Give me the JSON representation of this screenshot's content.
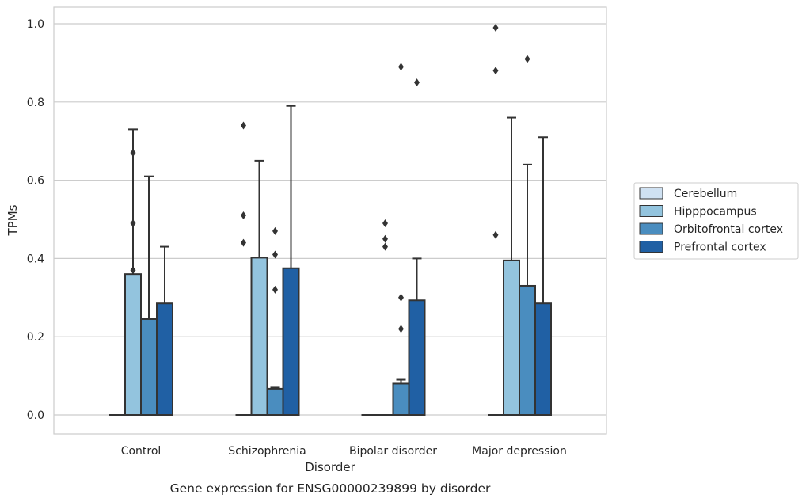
{
  "chart_data": {
    "type": "bar",
    "caption": "Gene expression for ENSG00000239899 by disorder",
    "xlabel": "Disorder",
    "ylabel": "TPMs",
    "ylim": [
      -0.05,
      1.04
    ],
    "yticks": [
      0.0,
      0.2,
      0.4,
      0.6,
      0.8,
      1.0
    ],
    "ytick_labels": [
      "0.0",
      "0.2",
      "0.4",
      "0.6",
      "0.8",
      "1.0"
    ],
    "grid": "horizontal",
    "legend_placement": "right",
    "categories": [
      "Control",
      "Schizophrenia",
      "Bipolar disorder",
      "Major depression"
    ],
    "series": [
      {
        "name": "Cerebellum",
        "color": "#cfe1f2",
        "values": [
          0.0,
          0.0,
          0.0,
          0.0
        ],
        "error_upper": [
          null,
          null,
          null,
          null
        ],
        "outliers": [
          [],
          [
            0.74,
            0.51,
            0.44
          ],
          [],
          [
            0.99,
            0.88,
            0.46
          ]
        ]
      },
      {
        "name": "Hipppocampus",
        "color": "#93c4de",
        "values": [
          0.36,
          0.402,
          0.0,
          0.395
        ],
        "error_upper": [
          0.73,
          0.65,
          null,
          0.76
        ],
        "outliers": [
          [
            0.67,
            0.49,
            0.37
          ],
          [],
          [],
          []
        ]
      },
      {
        "name": "Orbitofrontal cortex",
        "color": "#4a8dbf",
        "values": [
          0.245,
          0.067,
          0.08,
          0.33
        ],
        "error_upper": [
          0.61,
          0.07,
          0.09,
          0.64
        ],
        "outliers": [
          [],
          [
            0.47,
            0.41,
            0.32
          ],
          [
            0.89
          ],
          [
            0.91
          ]
        ]
      },
      {
        "name": "Prefrontal cortex",
        "color": "#2060a4",
        "values": [
          0.285,
          0.375,
          0.293,
          0.285
        ],
        "error_upper": [
          0.43,
          0.79,
          0.4,
          0.71
        ],
        "outliers": [
          [],
          [],
          [
            0.85
          ],
          []
        ]
      }
    ],
    "extra_outliers": [
      {
        "category": 2,
        "x_offset_series": 1,
        "values": [
          0.49,
          0.45,
          0.43
        ]
      },
      {
        "category": 2,
        "x_offset_series": 2,
        "values": [
          0.3,
          0.22
        ]
      }
    ]
  }
}
